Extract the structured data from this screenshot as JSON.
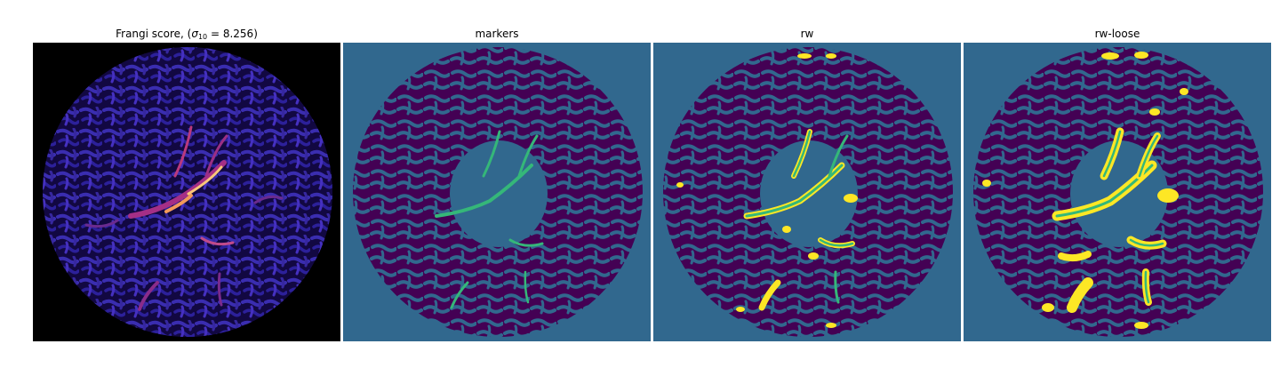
{
  "figure": {
    "panels": [
      {
        "id": "frangi",
        "title_prefix": "Frangi score, (",
        "title_sigma": "σ",
        "title_sub": "10",
        "title_suffix": " = 8.256)",
        "colors": {
          "background": "#000000",
          "low": "#1b0c6b",
          "mid": "#3b2fb0",
          "hot": "#e0559a",
          "bright": "#f9e08c"
        }
      },
      {
        "id": "markers",
        "title": "markers",
        "colors": {
          "background": "#31688e",
          "class1": "#440154",
          "class2": "#35b779"
        }
      },
      {
        "id": "rw",
        "title": "rw",
        "colors": {
          "background": "#31688e",
          "class1": "#440154",
          "class2": "#35b779",
          "class3": "#fde725"
        }
      },
      {
        "id": "rw-loose",
        "title": "rw-loose",
        "colors": {
          "background": "#31688e",
          "class1": "#440154",
          "class2": "#35b779",
          "class3": "#fde725"
        }
      }
    ]
  }
}
